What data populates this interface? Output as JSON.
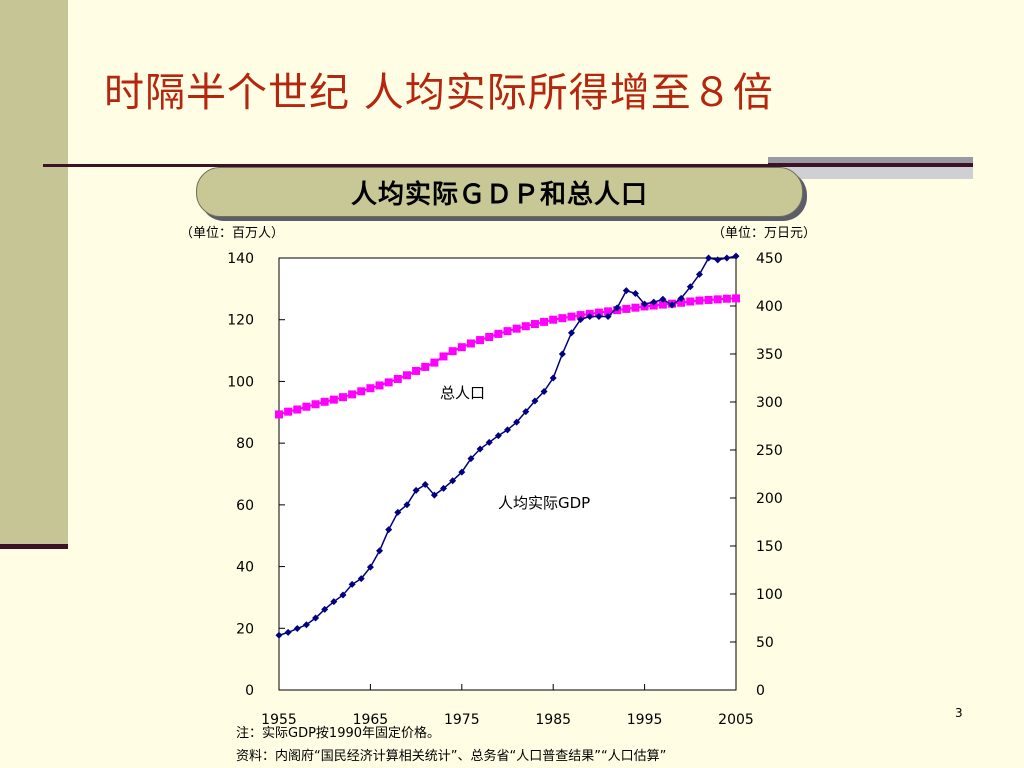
{
  "slide": {
    "title": "时隔半个世纪 人均实际所得增至８倍",
    "page_number": "3"
  },
  "chart_heading": "人均实际ＧＤＰ和总人口",
  "note": "注：实际GDP按1990年固定价格。",
  "source": "资料：内阁府“国民经济计算相关统计”、总务省“人口普查结果”“人口估算”",
  "colors": {
    "title": "#b5260f",
    "population_series": "#ff00ff",
    "gdp_series": "#000080",
    "sidebar": "#c5c596",
    "background": "#fffde3"
  },
  "chart_data": {
    "type": "line",
    "left_axis": {
      "unit_label": "（单位：百万人）",
      "ylim": [
        0,
        140
      ],
      "ticks": [
        "0",
        "20",
        "40",
        "60",
        "80",
        "100",
        "120",
        "140"
      ]
    },
    "right_axis": {
      "unit_label": "（单位：万日元）",
      "ylim": [
        0,
        450
      ],
      "ticks": [
        "0",
        "50",
        "100",
        "150",
        "200",
        "250",
        "300",
        "350",
        "400",
        "450"
      ]
    },
    "x_axis": {
      "xlim": [
        1955,
        2005
      ],
      "ticks": [
        "1955",
        "1965",
        "1975",
        "1985",
        "1995",
        "2005"
      ]
    },
    "grid": false,
    "series": [
      {
        "name": "总人口",
        "axis": "left",
        "marker": "square",
        "x": [
          1955,
          1956,
          1957,
          1958,
          1959,
          1960,
          1961,
          1962,
          1963,
          1964,
          1965,
          1966,
          1967,
          1968,
          1969,
          1970,
          1971,
          1972,
          1973,
          1974,
          1975,
          1976,
          1977,
          1978,
          1979,
          1980,
          1981,
          1982,
          1983,
          1984,
          1985,
          1986,
          1987,
          1988,
          1989,
          1990,
          1991,
          1992,
          1993,
          1994,
          1995,
          1996,
          1997,
          1998,
          1999,
          2000,
          2001,
          2002,
          2003,
          2004,
          2005
        ],
        "values": [
          89.3,
          90.2,
          90.9,
          91.8,
          92.6,
          93.4,
          94.1,
          94.9,
          95.8,
          96.8,
          97.8,
          98.7,
          99.7,
          100.8,
          102.0,
          103.4,
          104.7,
          106.1,
          108.1,
          109.8,
          111.1,
          112.3,
          113.4,
          114.4,
          115.4,
          116.3,
          117.1,
          117.9,
          118.6,
          119.3,
          120.0,
          120.5,
          121.0,
          121.5,
          121.9,
          122.3,
          122.7,
          123.1,
          123.5,
          123.9,
          124.3,
          124.6,
          124.9,
          125.2,
          125.5,
          125.9,
          126.2,
          126.4,
          126.6,
          126.8,
          126.9
        ]
      },
      {
        "name": "人均实际GDP",
        "axis": "right",
        "marker": "diamond",
        "x": [
          1955,
          1956,
          1957,
          1958,
          1959,
          1960,
          1961,
          1962,
          1963,
          1964,
          1965,
          1966,
          1967,
          1968,
          1969,
          1970,
          1971,
          1972,
          1973,
          1974,
          1975,
          1976,
          1977,
          1978,
          1979,
          1980,
          1981,
          1982,
          1983,
          1984,
          1985,
          1986,
          1987,
          1988,
          1989,
          1990,
          1991,
          1992,
          1993,
          1994,
          1995,
          1996,
          1997,
          1998,
          1999,
          2000,
          2001,
          2002,
          2003,
          2004,
          2005
        ],
        "values": [
          57,
          60,
          64,
          68,
          75,
          84,
          92,
          99,
          110,
          116,
          128,
          145,
          167,
          185,
          193,
          208,
          214,
          203,
          210,
          218,
          227,
          241,
          251,
          258,
          265,
          271,
          279,
          290,
          301,
          311,
          325,
          350,
          372,
          386,
          389,
          389,
          389,
          398,
          416,
          413,
          402,
          404,
          407,
          401,
          408,
          420,
          433,
          450,
          448,
          450,
          452
        ]
      }
    ]
  }
}
